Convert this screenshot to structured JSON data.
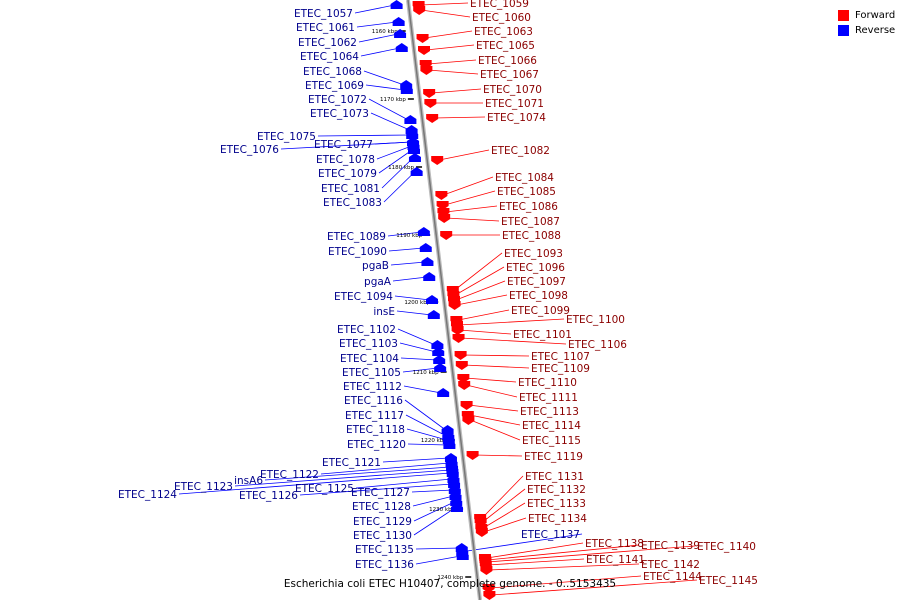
{
  "colors": {
    "forward": "#ff0000",
    "reverse": "#0000ff",
    "axis": "#888888"
  },
  "legend": [
    {
      "label": "Forward",
      "color": "#ff0000"
    },
    {
      "label": "Reverse",
      "color": "#0000ff"
    }
  ],
  "caption": "Escherichia coli ETEC H10407, complete genome. - 0..5153435",
  "scale_ticks": [
    "1160 kbp",
    "1170 kbp",
    "1180 kbp",
    "1190 kbp",
    "1200 kbp",
    "1210 kbp",
    "1220 kbp",
    "1230 kbp",
    "1240 kbp"
  ],
  "reverse_genes": [
    "ETEC_1057",
    "ETEC_1061",
    "ETEC_1062",
    "ETEC_1064",
    "ETEC_1068",
    "ETEC_1069",
    "ETEC_1072",
    "ETEC_1073",
    "ETEC_1075",
    "ETEC_1077",
    "ETEC_1076",
    "ETEC_1078",
    "ETEC_1079",
    "ETEC_1081",
    "ETEC_1083",
    "ETEC_1089",
    "ETEC_1090",
    "pgaB",
    "pgaA",
    "ETEC_1094",
    "insE",
    "ETEC_1102",
    "ETEC_1103",
    "ETEC_1104",
    "ETEC_1105",
    "ETEC_1112",
    "ETEC_1116",
    "ETEC_1117",
    "ETEC_1118",
    "ETEC_1120",
    "ETEC_1121",
    "ETEC_1122",
    "insA6",
    "ETEC_1123",
    "ETEC_1124",
    "ETEC_1125",
    "ETEC_1126",
    "ETEC_1127",
    "ETEC_1128",
    "ETEC_1129",
    "ETEC_1130",
    "ETEC_1135",
    "ETEC_1136",
    "ETEC_1137"
  ],
  "forward_genes": [
    "ETEC_1059",
    "ETEC_1060",
    "ETEC_1063",
    "ETEC_1065",
    "ETEC_1066",
    "ETEC_1067",
    "ETEC_1070",
    "ETEC_1071",
    "ETEC_1074",
    "ETEC_1082",
    "ETEC_1084",
    "ETEC_1085",
    "ETEC_1086",
    "ETEC_1087",
    "ETEC_1088",
    "ETEC_1093",
    "ETEC_1096",
    "ETEC_1097",
    "ETEC_1098",
    "ETEC_1099",
    "ETEC_1100",
    "ETEC_1101",
    "ETEC_1106",
    "ETEC_1107",
    "ETEC_1109",
    "ETEC_1110",
    "ETEC_1111",
    "ETEC_1113",
    "ETEC_1114",
    "ETEC_1115",
    "ETEC_1119",
    "ETEC_1131",
    "ETEC_1132",
    "ETEC_1133",
    "ETEC_1134",
    "ETEC_1138",
    "ETEC_1139",
    "ETEC_1140",
    "ETEC_1141",
    "ETEC_1142",
    "ETEC_1144",
    "ETEC_1145"
  ]
}
